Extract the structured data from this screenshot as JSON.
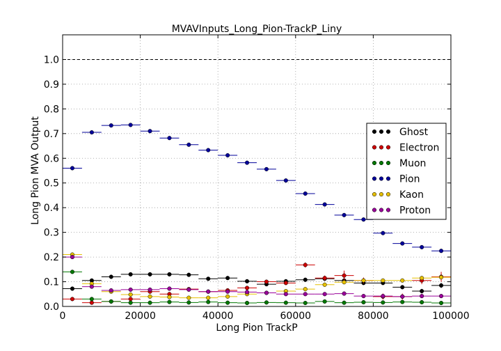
{
  "chart_data": {
    "type": "scatter",
    "title": "MVAVInputs_Long_Pion-TrackP_Liny",
    "xlabel": "Long Pion TrackP",
    "ylabel": "Long Pion MVA Output",
    "xlim": [
      0,
      100000
    ],
    "ylim": [
      0,
      1.1
    ],
    "x_ticks": [
      0,
      20000,
      40000,
      60000,
      80000,
      100000
    ],
    "x_tick_labels": [
      "0",
      "20000",
      "40000",
      "60000",
      "80000",
      "100000"
    ],
    "y_ticks": [
      0.0,
      0.1,
      0.2,
      0.3,
      0.4,
      0.5,
      0.6,
      0.7,
      0.8,
      0.9,
      1.0
    ],
    "y_tick_labels": [
      "0.0",
      "0.1",
      "0.2",
      "0.3",
      "0.4",
      "0.5",
      "0.6",
      "0.7",
      "0.8",
      "0.9",
      "1.0"
    ],
    "grid": true,
    "reference_line_y": 1.0,
    "legend_position": "right",
    "bin_width": 5000,
    "bin_centers": [
      2500,
      7500,
      12500,
      17500,
      22500,
      27500,
      32500,
      37500,
      42500,
      47500,
      52500,
      57500,
      62500,
      67500,
      72500,
      77500,
      82500,
      87500,
      92500,
      97500
    ],
    "series": [
      {
        "name": "Ghost",
        "color": "#000000",
        "values": [
          0.072,
          0.105,
          0.12,
          0.13,
          0.13,
          0.13,
          0.128,
          0.112,
          0.115,
          0.102,
          0.09,
          0.102,
          0.108,
          0.112,
          0.105,
          0.095,
          0.095,
          0.078,
          0.062,
          0.085
        ],
        "errors": [
          0.003,
          0.003,
          0.003,
          0.003,
          0.003,
          0.003,
          0.003,
          0.003,
          0.003,
          0.004,
          0.004,
          0.004,
          0.005,
          0.005,
          0.006,
          0.006,
          0.007,
          0.008,
          0.009,
          0.01
        ]
      },
      {
        "name": "Electron",
        "color": "#cc0000",
        "values": [
          0.03,
          0.015,
          0.02,
          0.03,
          0.06,
          0.05,
          0.07,
          0.06,
          0.065,
          0.075,
          0.1,
          0.095,
          0.168,
          0.115,
          0.125,
          0.105,
          0.04,
          0.04,
          0.105,
          0.12
        ],
        "errors": [
          0.003,
          0.003,
          0.003,
          0.003,
          0.004,
          0.004,
          0.005,
          0.005,
          0.006,
          0.006,
          0.007,
          0.008,
          0.01,
          0.01,
          0.02,
          0.012,
          0.012,
          0.012,
          0.015,
          0.02
        ]
      },
      {
        "name": "Muon",
        "color": "#007700",
        "values": [
          0.14,
          0.03,
          0.02,
          0.015,
          0.015,
          0.018,
          0.016,
          0.018,
          0.015,
          0.014,
          0.016,
          0.015,
          0.014,
          0.02,
          0.015,
          0.017,
          0.016,
          0.018,
          0.017,
          0.014
        ],
        "errors": [
          0.003,
          0.002,
          0.002,
          0.002,
          0.002,
          0.002,
          0.002,
          0.002,
          0.002,
          0.002,
          0.002,
          0.002,
          0.002,
          0.003,
          0.003,
          0.003,
          0.003,
          0.003,
          0.003,
          0.003
        ]
      },
      {
        "name": "Pion",
        "color": "#000099",
        "values": [
          0.56,
          0.705,
          0.733,
          0.735,
          0.71,
          0.682,
          0.655,
          0.633,
          0.612,
          0.582,
          0.556,
          0.51,
          0.457,
          0.413,
          0.37,
          0.352,
          0.297,
          0.255,
          0.24,
          0.225
        ],
        "errors": [
          0.003,
          0.002,
          0.002,
          0.002,
          0.002,
          0.002,
          0.002,
          0.002,
          0.002,
          0.002,
          0.002,
          0.003,
          0.003,
          0.003,
          0.003,
          0.003,
          0.003,
          0.003,
          0.004,
          0.004
        ]
      },
      {
        "name": "Kaon",
        "color": "#e6c000",
        "values": [
          0.21,
          0.092,
          0.06,
          0.048,
          0.04,
          0.038,
          0.035,
          0.035,
          0.04,
          0.05,
          0.055,
          0.062,
          0.07,
          0.088,
          0.098,
          0.105,
          0.105,
          0.105,
          0.115,
          0.118
        ],
        "errors": [
          0.003,
          0.002,
          0.002,
          0.002,
          0.002,
          0.002,
          0.002,
          0.002,
          0.002,
          0.003,
          0.003,
          0.003,
          0.003,
          0.004,
          0.004,
          0.004,
          0.004,
          0.005,
          0.005,
          0.006
        ]
      },
      {
        "name": "Proton",
        "color": "#990099",
        "values": [
          0.2,
          0.08,
          0.065,
          0.068,
          0.068,
          0.072,
          0.068,
          0.06,
          0.06,
          0.058,
          0.055,
          0.05,
          0.05,
          0.05,
          0.052,
          0.042,
          0.042,
          0.04,
          0.042,
          0.042
        ],
        "errors": [
          0.003,
          0.002,
          0.002,
          0.002,
          0.002,
          0.002,
          0.002,
          0.002,
          0.002,
          0.002,
          0.002,
          0.002,
          0.003,
          0.003,
          0.003,
          0.003,
          0.003,
          0.003,
          0.003,
          0.003
        ]
      }
    ]
  }
}
